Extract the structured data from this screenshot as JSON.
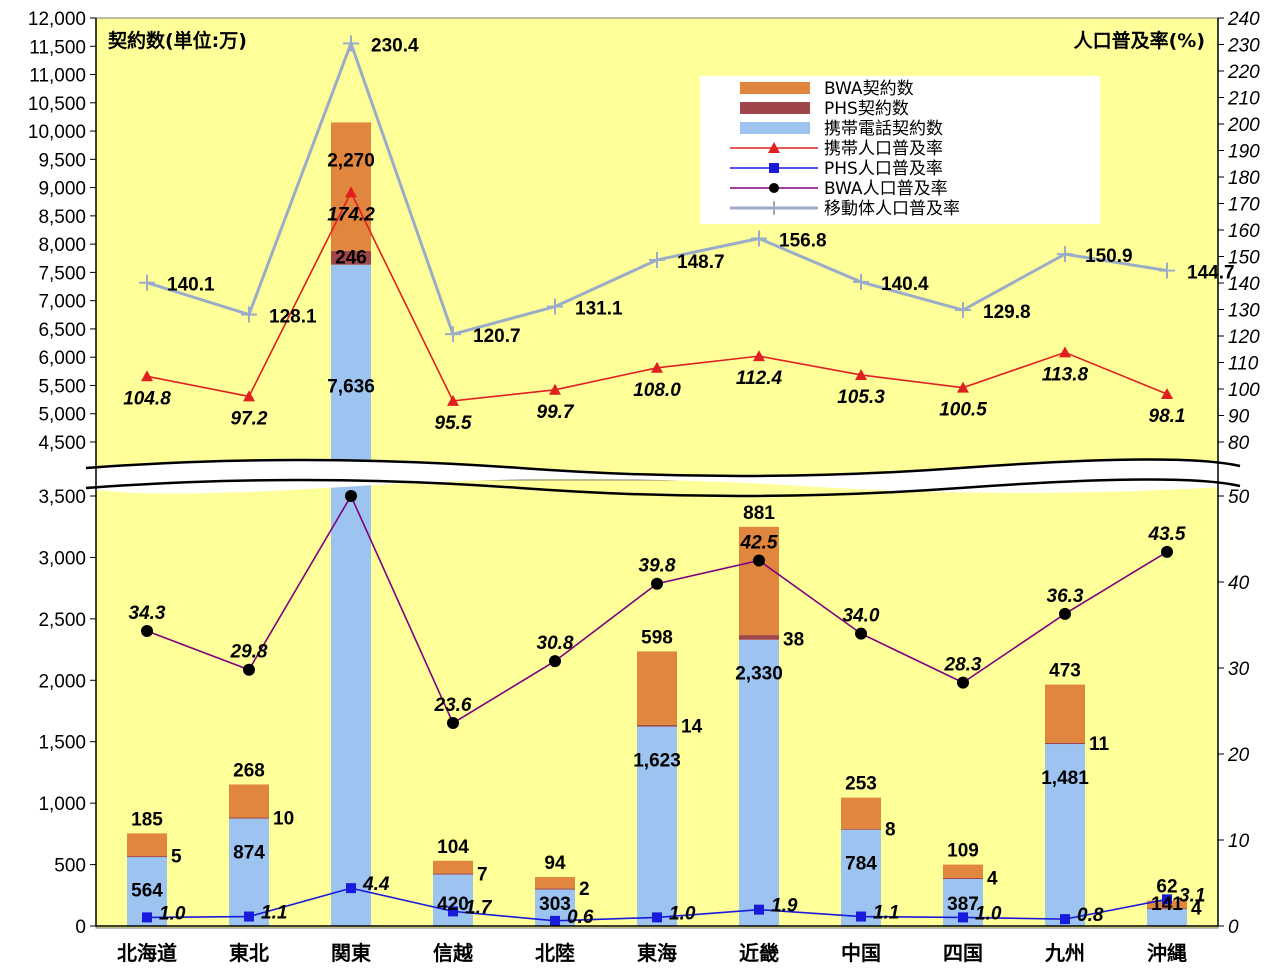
{
  "chart_data": {
    "type": "bar",
    "title": "",
    "ylabel_left": "契約数(単位:万)",
    "ylabel_right": "人口普及率(%)",
    "categories": [
      "北海道",
      "東北",
      "関東",
      "信越",
      "北陸",
      "東海",
      "近畿",
      "中国",
      "四国",
      "九州",
      "沖縄"
    ],
    "left_axis": {
      "lower_range": [
        0,
        3500
      ],
      "upper_range": [
        4500,
        12000
      ],
      "lower_ticks": [
        "0",
        "500",
        "1,000",
        "1,500",
        "2,000",
        "2,500",
        "3,000",
        "3,500"
      ],
      "upper_ticks": [
        "4,500",
        "5,000",
        "5,500",
        "6,000",
        "6,500",
        "7,000",
        "7,500",
        "8,000",
        "8,500",
        "9,000",
        "9,500",
        "10,000",
        "10,500",
        "11,000",
        "11,500",
        "12,000"
      ]
    },
    "right_axis": {
      "lower_range": [
        0,
        50
      ],
      "upper_range": [
        80,
        240
      ],
      "lower_ticks": [
        "0",
        "10",
        "20",
        "30",
        "40",
        "50"
      ],
      "upper_ticks": [
        "80",
        "90",
        "100",
        "110",
        "120",
        "130",
        "140",
        "150",
        "160",
        "170",
        "180",
        "190",
        "200",
        "210",
        "220",
        "230",
        "240"
      ]
    },
    "series": [
      {
        "name": "携帯電話契約数",
        "kind": "bar",
        "color": "#9dc3f0",
        "values": [
          564,
          874,
          7636,
          420,
          303,
          1623,
          2330,
          784,
          387,
          1481,
          141
        ],
        "labels": [
          "564",
          "874",
          "7,636",
          "420",
          "303",
          "1,623",
          "2,330",
          "784",
          "387",
          "1,481",
          "141"
        ]
      },
      {
        "name": "PHS契約数",
        "kind": "bar",
        "color": "#a0454b",
        "values": [
          5,
          10,
          246,
          7,
          2,
          14,
          38,
          8,
          4,
          11,
          4
        ],
        "labels": [
          "5",
          "10",
          "246",
          "7",
          "2",
          "14",
          "38",
          "8",
          "4",
          "11",
          "4"
        ]
      },
      {
        "name": "BWA契約数",
        "kind": "bar",
        "color": "#e0863e",
        "values": [
          185,
          268,
          2270,
          104,
          94,
          598,
          881,
          253,
          109,
          473,
          62
        ],
        "labels": [
          "185",
          "268",
          "2,270",
          "104",
          "94",
          "598",
          "881",
          "253",
          "109",
          "473",
          "62"
        ]
      },
      {
        "name": "携帯人口普及率",
        "kind": "line",
        "color": "#e02020",
        "values": [
          104.8,
          97.2,
          174.2,
          95.5,
          99.7,
          108.0,
          112.4,
          105.3,
          100.5,
          113.8,
          98.1
        ],
        "labels": [
          "104.8",
          "97.2",
          "174.2",
          "95.5",
          "99.7",
          "108.0",
          "112.4",
          "105.3",
          "100.5",
          "113.8",
          "98.1"
        ]
      },
      {
        "name": "PHS人口普及率",
        "kind": "line",
        "color": "#1a1adc",
        "values": [
          1.0,
          1.1,
          4.4,
          1.7,
          0.6,
          1.0,
          1.9,
          1.1,
          1.0,
          0.8,
          3.1
        ],
        "labels": [
          "1.0",
          "1.1",
          "4.4",
          "1.7",
          "0.6",
          "1.0",
          "1.9",
          "1.1",
          "1.0",
          "0.8",
          "3.1"
        ]
      },
      {
        "name": "BWA人口普及率",
        "kind": "line",
        "color": "#800080",
        "values": [
          34.3,
          29.8,
          50.0,
          23.6,
          30.8,
          39.8,
          42.5,
          34.0,
          28.3,
          36.3,
          43.5
        ],
        "labels": [
          "34.3",
          "29.8",
          "",
          "23.6",
          "30.8",
          "39.8",
          "42.5",
          "34.0",
          "28.3",
          "36.3",
          "43.5"
        ]
      },
      {
        "name": "移動体人口普及率",
        "kind": "line",
        "color": "#9aacc8",
        "values": [
          140.1,
          128.1,
          230.4,
          120.7,
          131.1,
          148.7,
          156.8,
          140.4,
          129.8,
          150.9,
          144.7
        ],
        "labels": [
          "140.1",
          "128.1",
          "230.4",
          "120.7",
          "131.1",
          "148.7",
          "156.8",
          "140.4",
          "129.8",
          "150.9",
          "144.7"
        ]
      }
    ],
    "legend": {
      "placement": "top-right",
      "items": [
        "BWA契約数",
        "PHS契約数",
        "携帯電話契約数",
        "携帯人口普及率",
        "PHS人口普及率",
        "BWA人口普及率",
        "移動体人口普及率"
      ]
    },
    "plot_background": "#ffff99"
  }
}
